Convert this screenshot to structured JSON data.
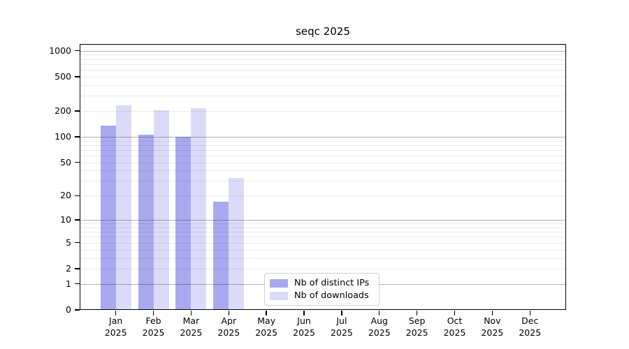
{
  "title": "seqc 2025",
  "chart_data": {
    "type": "bar",
    "title": "seqc 2025",
    "xlabel": "",
    "ylabel": "",
    "categories": [
      "Jan",
      "Feb",
      "Mar",
      "Apr",
      "May",
      "Jun",
      "Jul",
      "Aug",
      "Sep",
      "Oct",
      "Nov",
      "Dec"
    ],
    "year_label": "2025",
    "series": [
      {
        "name": "Nb of distinct IPs",
        "color": "#a9a9ef",
        "values": [
          134,
          106,
          100,
          17,
          0,
          0,
          0,
          0,
          0,
          0,
          0,
          0
        ]
      },
      {
        "name": "Nb of downloads",
        "color": "#dbdbf9",
        "values": [
          232,
          203,
          216,
          33,
          0,
          0,
          0,
          0,
          0,
          0,
          0,
          0
        ]
      }
    ],
    "yscale": "symlog (y proportional to ln(1+v))",
    "yticks": [
      1000,
      500,
      200,
      100,
      50,
      20,
      10,
      5,
      2,
      1,
      0
    ],
    "ylim": [
      0,
      1200
    ],
    "grid": "horizontal major and minor gridlines, drawn above bars",
    "legend_position": "bottom-center inside plot"
  }
}
